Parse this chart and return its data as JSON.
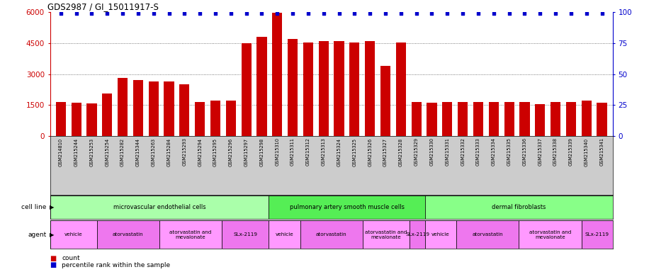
{
  "title": "GDS2987 / GI_15011917-S",
  "samples": [
    "GSM214810",
    "GSM215244",
    "GSM215253",
    "GSM215254",
    "GSM215282",
    "GSM215344",
    "GSM215263",
    "GSM215284",
    "GSM215293",
    "GSM215294",
    "GSM215295",
    "GSM215296",
    "GSM215297",
    "GSM215298",
    "GSM215310",
    "GSM215311",
    "GSM215312",
    "GSM215313",
    "GSM215324",
    "GSM215325",
    "GSM215326",
    "GSM215327",
    "GSM215328",
    "GSM215329",
    "GSM215330",
    "GSM215331",
    "GSM215332",
    "GSM215333",
    "GSM215334",
    "GSM215335",
    "GSM215336",
    "GSM215337",
    "GSM215338",
    "GSM215339",
    "GSM215340",
    "GSM215341"
  ],
  "bar_values": [
    1650,
    1620,
    1580,
    2050,
    2800,
    2700,
    2650,
    2650,
    2500,
    1650,
    1700,
    1700,
    4500,
    4800,
    5980,
    4700,
    4550,
    4600,
    4600,
    4550,
    4600,
    3400,
    4550,
    1650,
    1600,
    1650,
    1650,
    1650,
    1650,
    1650,
    1650,
    1550,
    1650,
    1650,
    1700,
    1600
  ],
  "percentile_values": [
    99,
    99,
    99,
    99,
    99,
    99,
    99,
    99,
    99,
    99,
    99,
    99,
    99,
    99,
    99,
    99,
    99,
    99,
    99,
    99,
    99,
    99,
    99,
    99,
    99,
    99,
    99,
    99,
    99,
    99,
    99,
    99,
    99,
    99,
    99,
    99
  ],
  "bar_color": "#cc0000",
  "percentile_color": "#0000cc",
  "ylim_left": [
    0,
    6000
  ],
  "ylim_right": [
    0,
    100
  ],
  "yticks_left": [
    0,
    1500,
    3000,
    4500,
    6000
  ],
  "yticks_right": [
    0,
    25,
    50,
    75,
    100
  ],
  "cell_line_groups": [
    {
      "label": "microvascular endothelial cells",
      "start": 0,
      "end": 14,
      "color": "#aaffaa"
    },
    {
      "label": "pulmonary artery smooth muscle cells",
      "start": 14,
      "end": 24,
      "color": "#55ee55"
    },
    {
      "label": "dermal fibroblasts",
      "start": 24,
      "end": 36,
      "color": "#88ff88"
    }
  ],
  "agent_groups": [
    {
      "label": "vehicle",
      "start": 0,
      "end": 3,
      "color": "#ff99ff"
    },
    {
      "label": "atorvastatin",
      "start": 3,
      "end": 7,
      "color": "#ee77ee"
    },
    {
      "label": "atorvastatin and\nmevalonate",
      "start": 7,
      "end": 11,
      "color": "#ff99ff"
    },
    {
      "label": "SLx-2119",
      "start": 11,
      "end": 14,
      "color": "#ee77ee"
    },
    {
      "label": "vehicle",
      "start": 14,
      "end": 16,
      "color": "#ff99ff"
    },
    {
      "label": "atorvastatin",
      "start": 16,
      "end": 20,
      "color": "#ee77ee"
    },
    {
      "label": "atorvastatin and\nmevalonate",
      "start": 20,
      "end": 23,
      "color": "#ff99ff"
    },
    {
      "label": "SLx-2119",
      "start": 23,
      "end": 24,
      "color": "#ee77ee"
    },
    {
      "label": "vehicle",
      "start": 24,
      "end": 26,
      "color": "#ff99ff"
    },
    {
      "label": "atorvastatin",
      "start": 26,
      "end": 30,
      "color": "#ee77ee"
    },
    {
      "label": "atorvastatin and\nmevalonate",
      "start": 30,
      "end": 34,
      "color": "#ff99ff"
    },
    {
      "label": "SLx-2119",
      "start": 34,
      "end": 36,
      "color": "#ee77ee"
    }
  ],
  "background_color": "#ffffff",
  "plot_bg_color": "#ffffff",
  "grid_color": "#555555",
  "xtick_bg_color": "#cccccc"
}
